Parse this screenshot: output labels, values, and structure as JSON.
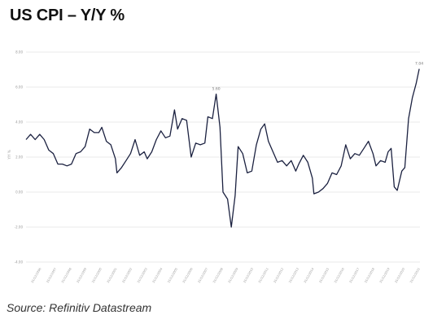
{
  "title": "US CPI – Y/Y %",
  "source": "Source: Refinitiv Datastream",
  "chart_data": {
    "type": "line",
    "title": "US CPI – Y/Y %",
    "xlabel": "",
    "ylabel": "Y/Y %",
    "ylim": [
      -4,
      8
    ],
    "yticks": [
      "8.00",
      "6.00",
      "4.00",
      "2.00",
      "0.00",
      "-2.00",
      "-4.00"
    ],
    "ytick_values": [
      8,
      6,
      4,
      2,
      0,
      -2,
      -4
    ],
    "x_tick_labels": [
      "31/12/1996",
      "31/12/1997",
      "31/12/1998",
      "31/12/1999",
      "31/12/2000",
      "31/12/2001",
      "31/12/2002",
      "31/12/2003",
      "31/12/2004",
      "31/12/2005",
      "31/12/2006",
      "31/12/2007",
      "31/12/2008",
      "31/12/2009",
      "31/12/2010",
      "31/12/2011",
      "31/12/2012",
      "31/12/2013",
      "31/12/2014",
      "31/12/2015",
      "31/12/2016",
      "31/12/2017",
      "31/12/2018",
      "31/12/2019",
      "31/12/2020",
      "31/12/2021"
    ],
    "grid": true,
    "line_color": "#1b2140",
    "series": [
      {
        "values": [
          [
            1996.0,
            3.0
          ],
          [
            1996.3,
            3.3
          ],
          [
            1996.6,
            3.0
          ],
          [
            1996.9,
            3.3
          ],
          [
            1997.2,
            3.0
          ],
          [
            1997.5,
            2.4
          ],
          [
            1997.8,
            2.2
          ],
          [
            1998.1,
            1.6
          ],
          [
            1998.4,
            1.6
          ],
          [
            1998.7,
            1.5
          ],
          [
            1999.0,
            1.6
          ],
          [
            1999.3,
            2.2
          ],
          [
            1999.6,
            2.3
          ],
          [
            1999.9,
            2.6
          ],
          [
            2000.2,
            3.6
          ],
          [
            2000.5,
            3.4
          ],
          [
            2000.8,
            3.4
          ],
          [
            2001.0,
            3.7
          ],
          [
            2001.3,
            2.9
          ],
          [
            2001.6,
            2.7
          ],
          [
            2001.9,
            1.9
          ],
          [
            2002.0,
            1.1
          ],
          [
            2002.3,
            1.4
          ],
          [
            2002.6,
            1.8
          ],
          [
            2002.9,
            2.2
          ],
          [
            2003.2,
            3.0
          ],
          [
            2003.5,
            2.1
          ],
          [
            2003.8,
            2.3
          ],
          [
            2004.0,
            1.9
          ],
          [
            2004.3,
            2.3
          ],
          [
            2004.6,
            3.0
          ],
          [
            2004.9,
            3.5
          ],
          [
            2005.2,
            3.1
          ],
          [
            2005.5,
            3.2
          ],
          [
            2005.8,
            4.7
          ],
          [
            2006.0,
            3.6
          ],
          [
            2006.3,
            4.2
          ],
          [
            2006.6,
            4.1
          ],
          [
            2006.9,
            2.0
          ],
          [
            2007.2,
            2.8
          ],
          [
            2007.5,
            2.7
          ],
          [
            2007.8,
            2.8
          ],
          [
            2008.0,
            4.3
          ],
          [
            2008.3,
            4.2
          ],
          [
            2008.55,
            5.6
          ],
          [
            2008.8,
            3.7
          ],
          [
            2009.0,
            0.0
          ],
          [
            2009.3,
            -0.4
          ],
          [
            2009.55,
            -2.0
          ],
          [
            2009.8,
            -0.2
          ],
          [
            2010.0,
            2.6
          ],
          [
            2010.3,
            2.2
          ],
          [
            2010.6,
            1.1
          ],
          [
            2010.9,
            1.2
          ],
          [
            2011.2,
            2.7
          ],
          [
            2011.5,
            3.6
          ],
          [
            2011.75,
            3.9
          ],
          [
            2012.0,
            2.9
          ],
          [
            2012.3,
            2.3
          ],
          [
            2012.6,
            1.7
          ],
          [
            2012.9,
            1.8
          ],
          [
            2013.2,
            1.5
          ],
          [
            2013.5,
            1.8
          ],
          [
            2013.8,
            1.2
          ],
          [
            2014.0,
            1.6
          ],
          [
            2014.3,
            2.1
          ],
          [
            2014.6,
            1.7
          ],
          [
            2014.9,
            0.8
          ],
          [
            2015.0,
            -0.1
          ],
          [
            2015.3,
            0.0
          ],
          [
            2015.6,
            0.2
          ],
          [
            2015.9,
            0.5
          ],
          [
            2016.2,
            1.1
          ],
          [
            2016.5,
            1.0
          ],
          [
            2016.8,
            1.5
          ],
          [
            2017.1,
            2.7
          ],
          [
            2017.4,
            1.9
          ],
          [
            2017.7,
            2.2
          ],
          [
            2018.0,
            2.1
          ],
          [
            2018.3,
            2.5
          ],
          [
            2018.6,
            2.9
          ],
          [
            2018.9,
            2.2
          ],
          [
            2019.1,
            1.5
          ],
          [
            2019.4,
            1.8
          ],
          [
            2019.7,
            1.7
          ],
          [
            2019.9,
            2.3
          ],
          [
            2020.1,
            2.5
          ],
          [
            2020.3,
            0.3
          ],
          [
            2020.5,
            0.1
          ],
          [
            2020.8,
            1.2
          ],
          [
            2021.0,
            1.4
          ],
          [
            2021.25,
            4.2
          ],
          [
            2021.5,
            5.4
          ],
          [
            2021.75,
            6.2
          ],
          [
            2021.95,
            7.04
          ]
        ]
      }
    ],
    "annotations": [
      {
        "x": 2008.55,
        "y": 5.6,
        "text": "5.60"
      },
      {
        "x": 2021.95,
        "y": 7.04,
        "text": "7.04"
      }
    ]
  }
}
